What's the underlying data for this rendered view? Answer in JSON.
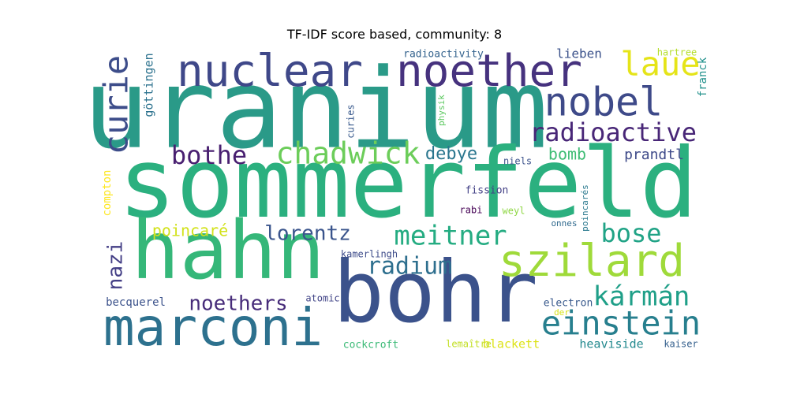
{
  "chart_data": {
    "type": "wordcloud",
    "title": "TF-IDF score based, community: 8",
    "words": [
      {
        "text": "uranium",
        "color": "#2a9a88",
        "rotated": false
      },
      {
        "text": "sommerfeld",
        "color": "#2bb07f",
        "rotated": false
      },
      {
        "text": "hahn",
        "color": "#35b779",
        "rotated": false
      },
      {
        "text": "bohr",
        "color": "#3b528b",
        "rotated": false
      },
      {
        "text": "marconi",
        "color": "#2d718e",
        "rotated": false
      },
      {
        "text": "nuclear",
        "color": "#3f4889",
        "rotated": false
      },
      {
        "text": "noether",
        "color": "#46327e",
        "rotated": false
      },
      {
        "text": "szilard",
        "color": "#9fda3a",
        "rotated": false
      },
      {
        "text": "nobel",
        "color": "#3e4a89",
        "rotated": false
      },
      {
        "text": "einstein",
        "color": "#277f8e",
        "rotated": false
      },
      {
        "text": "curie",
        "color": "#3d4d8a",
        "rotated": true
      },
      {
        "text": "laue",
        "color": "#e5e419",
        "rotated": false
      },
      {
        "text": "chadwick",
        "color": "#6ccd5a",
        "rotated": false
      },
      {
        "text": "meitner",
        "color": "#25ac82",
        "rotated": false
      },
      {
        "text": "kármán",
        "color": "#1f9f88",
        "rotated": false
      },
      {
        "text": "radioactive",
        "color": "#482677",
        "rotated": false
      },
      {
        "text": "bothe",
        "color": "#481f70",
        "rotated": false
      },
      {
        "text": "bose",
        "color": "#20a386",
        "rotated": false
      },
      {
        "text": "radium",
        "color": "#2e6f8e",
        "rotated": false
      },
      {
        "text": "lorentz",
        "color": "#3a548c",
        "rotated": false
      },
      {
        "text": "noethers",
        "color": "#472c7a",
        "rotated": false
      },
      {
        "text": "nazi",
        "color": "#433e85",
        "rotated": true
      },
      {
        "text": "poincaré",
        "color": "#d2e21b",
        "rotated": false
      },
      {
        "text": "debye",
        "color": "#2a768e",
        "rotated": false
      },
      {
        "text": "bomb",
        "color": "#3dbc74",
        "rotated": false
      },
      {
        "text": "prandtl",
        "color": "#3e4a89",
        "rotated": false
      },
      {
        "text": "lieben",
        "color": "#3b528b",
        "rotated": false
      },
      {
        "text": "göttingen",
        "color": "#2c728e",
        "rotated": true
      },
      {
        "text": "franck",
        "color": "#21918c",
        "rotated": true
      },
      {
        "text": "compton",
        "color": "#fde725",
        "rotated": true
      },
      {
        "text": "becquerel",
        "color": "#3b528b",
        "rotated": false
      },
      {
        "text": "radioactivity",
        "color": "#33628d",
        "rotated": false
      },
      {
        "text": "curies",
        "color": "#38598c",
        "rotated": true
      },
      {
        "text": "physik",
        "color": "#5ec962",
        "rotated": true
      },
      {
        "text": "hartree",
        "color": "#b5de2b",
        "rotated": false
      },
      {
        "text": "niels",
        "color": "#3b528b",
        "rotated": false
      },
      {
        "text": "fission",
        "color": "#424086",
        "rotated": false
      },
      {
        "text": "rabi",
        "color": "#440154",
        "rotated": false
      },
      {
        "text": "weyl",
        "color": "#8fd744",
        "rotated": false
      },
      {
        "text": "onnes",
        "color": "#306a8e",
        "rotated": false
      },
      {
        "text": "poincarés",
        "color": "#2a788e",
        "rotated": true
      },
      {
        "text": "kamerlingh",
        "color": "#3e4c8a",
        "rotated": false
      },
      {
        "text": "atomic",
        "color": "#414487",
        "rotated": false
      },
      {
        "text": "electron",
        "color": "#38598c",
        "rotated": false
      },
      {
        "text": "der",
        "color": "#d8e219",
        "rotated": false
      },
      {
        "text": "blackett",
        "color": "#dde318",
        "rotated": false
      },
      {
        "text": "heaviside",
        "color": "#23898e",
        "rotated": false
      },
      {
        "text": "cockcroft",
        "color": "#3aba76",
        "rotated": false
      },
      {
        "text": "lemaître",
        "color": "#c2df23",
        "rotated": false
      },
      {
        "text": "kaiser",
        "color": "#35608d",
        "rotated": false
      }
    ]
  }
}
